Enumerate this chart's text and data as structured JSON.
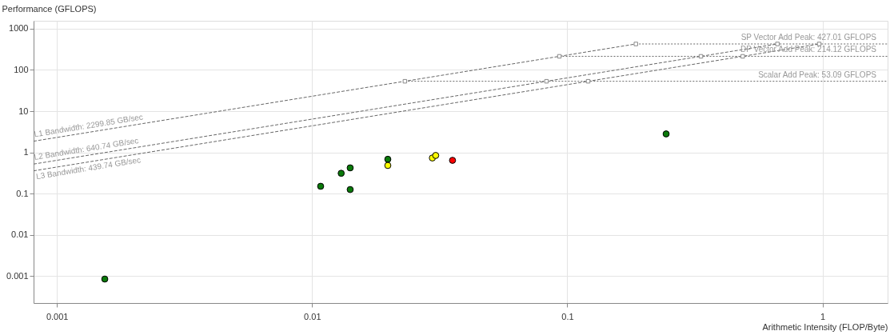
{
  "chart_data": {
    "type": "scatter",
    "xlabel": "Arithmetic Intensity (FLOP/Byte)",
    "ylabel": "Performance (GFLOPS)",
    "log": "xy",
    "grid": true,
    "xlim": [
      0.00081,
      1.8
    ],
    "ylim": [
      0.00022,
      1560
    ],
    "xticks": [
      0.001,
      0.01,
      0.1,
      1
    ],
    "yticks": [
      0.001,
      0.01,
      0.1,
      1,
      10,
      100,
      1000
    ],
    "series": [
      {
        "name": "L1 Bandwidth: 2299.85 GB/sec",
        "type": "line",
        "line_style": "dashed",
        "marker": "none",
        "color": "#666666",
        "x": [
          0.00081,
          0.1857
        ],
        "values": [
          1.863,
          427.01
        ]
      },
      {
        "name": "L2 Bandwidth: 640.74 GB/sec",
        "type": "line",
        "line_style": "dashed",
        "marker": "none",
        "color": "#666666",
        "x": [
          0.00081,
          0.666
        ],
        "values": [
          0.519,
          427.01
        ]
      },
      {
        "name": "L3 Bandwidth: 439.74 GB/sec",
        "type": "line",
        "line_style": "dashed",
        "marker": "none",
        "color": "#666666",
        "x": [
          0.00081,
          0.971
        ],
        "values": [
          0.356,
          427.01
        ]
      },
      {
        "name": "SP Vector Add Peak: 427.01 GFLOPS",
        "type": "line",
        "line_style": "dotted",
        "marker": "none",
        "color": "#666666",
        "x": [
          0.1857,
          1.8
        ],
        "values": [
          427.01,
          427.01
        ]
      },
      {
        "name": "DP Vector Add Peak: 214.12 GFLOPS",
        "type": "line",
        "line_style": "dotted",
        "marker": "none",
        "color": "#666666",
        "x": [
          0.0931,
          1.8
        ],
        "values": [
          214.12,
          214.12
        ]
      },
      {
        "name": "Scalar Add Peak: 53.09 GFLOPS",
        "type": "line",
        "line_style": "dotted",
        "marker": "none",
        "color": "#666666",
        "x": [
          0.0231,
          1.8
        ],
        "values": [
          53.09,
          53.09
        ]
      },
      {
        "marker": "square",
        "color": "#888888",
        "x": [
          0.0231,
          0.0931,
          0.1857,
          0.0829,
          0.334,
          0.666,
          0.1207,
          0.487,
          0.971
        ],
        "values": [
          53.09,
          214.12,
          427.01,
          53.09,
          214.12,
          427.01,
          53.09,
          214.12,
          427.01
        ]
      },
      {
        "marker": "circle",
        "color": "#0a7a0a",
        "x": [
          0.00154,
          0.0108,
          0.013,
          0.0141,
          0.0141,
          0.0198,
          0.244
        ],
        "values": [
          0.00084,
          0.15,
          0.31,
          0.42,
          0.125,
          0.68,
          2.8
        ]
      },
      {
        "marker": "circle",
        "color": "#ffff00",
        "x": [
          0.0198,
          0.0296,
          0.0305
        ],
        "values": [
          0.48,
          0.73,
          0.84
        ]
      },
      {
        "marker": "circle",
        "color": "#ff0000",
        "x": [
          0.0355
        ],
        "values": [
          0.64
        ]
      }
    ]
  }
}
